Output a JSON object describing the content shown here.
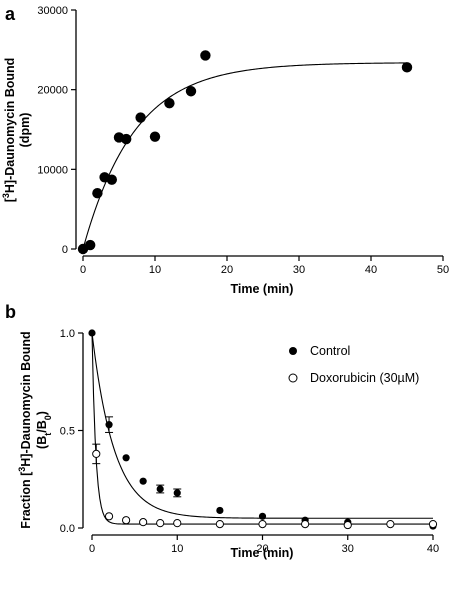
{
  "chart_data": [
    {
      "panel_label": "a",
      "type": "scatter",
      "xlabel": "Time (min)",
      "ylabel": {
        "pre": "[",
        "sup": "3",
        "post": "H]-Daunomycin Bound",
        "line2": "(dpm)"
      },
      "xlim": [
        0,
        50
      ],
      "ylim": [
        0,
        30000
      ],
      "xticks": [
        0,
        10,
        20,
        30,
        40,
        50
      ],
      "yticks": [
        0,
        10000,
        20000,
        30000
      ],
      "grid": false,
      "series": [
        {
          "marker": "filled-circle",
          "points": [
            [
              0,
              0
            ],
            [
              1,
              500
            ],
            [
              2,
              7000
            ],
            [
              3,
              9000
            ],
            [
              4,
              8700
            ],
            [
              5,
              14000
            ],
            [
              6,
              13800
            ],
            [
              8,
              16500
            ],
            [
              10,
              14100
            ],
            [
              12,
              18300
            ],
            [
              15,
              19800
            ],
            [
              17,
              24300
            ],
            [
              45,
              22800
            ]
          ],
          "fit": {
            "model": "one-phase association",
            "ymax": 23400,
            "k": 0.14
          }
        }
      ]
    },
    {
      "panel_label": "b",
      "type": "scatter",
      "xlabel": "Time (min)",
      "ylabel": {
        "pre": "Fraction [",
        "sup": "3",
        "post": "H]-Daunomycin Bound",
        "line2_pre": "(B",
        "line2_sub1": "t",
        "line2_mid": "/B",
        "line2_sub2": "0",
        "line2_post": ")"
      },
      "xlim": [
        0,
        40
      ],
      "ylim": [
        0,
        1.0
      ],
      "xticks": [
        0,
        10,
        20,
        30,
        40
      ],
      "yticks": [
        0.0,
        0.5,
        1.0
      ],
      "ytick_labels": [
        "0.0",
        "0.5",
        "1.0"
      ],
      "grid": false,
      "legend_position": "top-right",
      "series": [
        {
          "name": "Control",
          "marker": "filled-circle",
          "points": [
            [
              0,
              1.0
            ],
            [
              2,
              0.53
            ],
            [
              4,
              0.36
            ],
            [
              6,
              0.24
            ],
            [
              8,
              0.2
            ],
            [
              10,
              0.18
            ],
            [
              15,
              0.09
            ],
            [
              20,
              0.06
            ],
            [
              25,
              0.04
            ],
            [
              30,
              0.03
            ],
            [
              35,
              0.02
            ],
            [
              40,
              0.01
            ]
          ],
          "errors": [
            0,
            0.04,
            0,
            0,
            0.02,
            0.02,
            0,
            0,
            0,
            0,
            0,
            0
          ],
          "fit": {
            "model": "one-phase decay",
            "plateau": 0.05,
            "k": 0.38
          }
        },
        {
          "name": "Doxorubicin (30µM)",
          "marker": "open-circle",
          "points": [
            [
              0.5,
              0.38
            ],
            [
              2,
              0.06
            ],
            [
              4,
              0.04
            ],
            [
              6,
              0.03
            ],
            [
              8,
              0.025
            ],
            [
              10,
              0.025
            ],
            [
              15,
              0.02
            ],
            [
              20,
              0.02
            ],
            [
              25,
              0.02
            ],
            [
              30,
              0.015
            ],
            [
              35,
              0.02
            ],
            [
              40,
              0.02
            ]
          ],
          "errors": [
            0.05,
            0,
            0,
            0,
            0,
            0,
            0,
            0,
            0,
            0,
            0,
            0
          ],
          "fit": {
            "model": "one-phase decay",
            "plateau": 0.02,
            "k": 2.2
          }
        }
      ]
    }
  ]
}
